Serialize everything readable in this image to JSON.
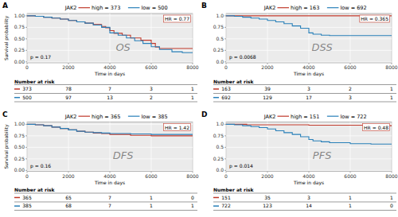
{
  "chart_data": [
    {
      "type": "line",
      "line_style": "step",
      "panel_label": "A",
      "title": "JAK2",
      "subtitle": "OS",
      "annotations": [
        "HR = 0.77",
        "p = 0.17"
      ],
      "xlabel": "Time in days",
      "ylabel": "Survival probability",
      "xlim": [
        0,
        8000
      ],
      "ylim": [
        -0.02,
        1.05
      ],
      "xticks": [
        0,
        2000,
        4000,
        6000,
        8000
      ],
      "yticks": [
        {
          "value": 0.0,
          "label": "0.00"
        },
        0.25,
        {
          "value": 0.5,
          "label": "0.50"
        },
        0.75,
        {
          "value": 1.0,
          "label": "1.00"
        }
      ],
      "grid": true,
      "risk_table_title": "Number at risk",
      "series": [
        {
          "name": "high = 373",
          "color": "#c0392b",
          "x": [
            0,
            400,
            800,
            1200,
            1600,
            2000,
            2400,
            2800,
            3200,
            3600,
            3800,
            4000,
            4200,
            4600,
            5000,
            5500,
            6000,
            6200,
            6400,
            7000,
            7500,
            8000
          ],
          "values": [
            1.0,
            0.99,
            0.97,
            0.95,
            0.93,
            0.9,
            0.87,
            0.84,
            0.81,
            0.77,
            0.74,
            0.68,
            0.62,
            0.58,
            0.52,
            0.47,
            0.4,
            0.32,
            0.29,
            0.29,
            0.29,
            0.29
          ],
          "at_risk": [
            373,
            78,
            7,
            3,
            1
          ]
        },
        {
          "name": "low = 500",
          "color": "#2980b9",
          "x": [
            0,
            400,
            800,
            1200,
            1600,
            2000,
            2400,
            2800,
            3200,
            3600,
            4000,
            4400,
            4800,
            5200,
            5600,
            6000,
            6400,
            7000,
            7500,
            8000
          ],
          "values": [
            1.0,
            0.99,
            0.97,
            0.95,
            0.93,
            0.9,
            0.87,
            0.84,
            0.8,
            0.75,
            0.63,
            0.58,
            0.52,
            0.46,
            0.4,
            0.33,
            0.27,
            0.22,
            0.2,
            0.2
          ],
          "at_risk": [
            500,
            97,
            13,
            2,
            1
          ]
        }
      ]
    },
    {
      "type": "line",
      "line_style": "step",
      "panel_label": "B",
      "title": "JAK2",
      "subtitle": "DSS",
      "annotations": [
        "HR = 0.365",
        "p = 0.0068"
      ],
      "xlabel": "Time in days",
      "xlim": [
        0,
        8000
      ],
      "ylim": [
        -0.02,
        1.05
      ],
      "xticks": [
        0,
        2000,
        4000,
        6000,
        8000
      ],
      "yticks": [
        {
          "value": 0.0,
          "label": "0.0"
        },
        0.25,
        0.5,
        0.75,
        {
          "value": 1.0,
          "label": "1.0"
        }
      ],
      "grid": true,
      "risk_table_title": "Number at risk",
      "series": [
        {
          "name": "high = 163",
          "color": "#c0392b",
          "x": [
            0,
            500,
            1000,
            2000,
            3000,
            4000,
            5000,
            6000,
            7000,
            8000
          ],
          "values": [
            1.0,
            1.0,
            1.0,
            1.0,
            1.0,
            1.0,
            1.0,
            1.0,
            1.0,
            1.0
          ],
          "at_risk": [
            163,
            39,
            3,
            2,
            1
          ]
        },
        {
          "name": "low = 692",
          "color": "#2980b9",
          "x": [
            0,
            400,
            800,
            1200,
            1600,
            2000,
            2400,
            2800,
            3200,
            3600,
            4000,
            4200,
            4600,
            5000,
            6000,
            7000,
            8000
          ],
          "values": [
            1.0,
            0.99,
            0.97,
            0.95,
            0.93,
            0.9,
            0.87,
            0.83,
            0.78,
            0.73,
            0.63,
            0.6,
            0.58,
            0.57,
            0.57,
            0.57,
            0.57
          ],
          "at_risk": [
            692,
            129,
            17,
            3,
            1
          ]
        }
      ]
    },
    {
      "type": "line",
      "line_style": "step",
      "panel_label": "C",
      "title": "JAK2",
      "subtitle": "DFS",
      "annotations": [
        "HR = 1.42",
        "p = 0.16"
      ],
      "xlabel": "Time in days",
      "ylabel": "Survival probability",
      "xlim": [
        0,
        8000
      ],
      "ylim": [
        -0.02,
        1.05
      ],
      "xticks": [
        0,
        2000,
        4000,
        6000,
        8000
      ],
      "yticks": [
        {
          "value": 0.0,
          "label": "0.00"
        },
        0.25,
        {
          "value": 0.5,
          "label": "0.50"
        },
        0.75,
        {
          "value": 1.0,
          "label": "1.00"
        }
      ],
      "grid": true,
      "risk_table_title": "Number at risk",
      "series": [
        {
          "name": "high = 365",
          "color": "#c0392b",
          "x": [
            0,
            400,
            800,
            1200,
            1600,
            2000,
            2400,
            2800,
            3200,
            3600,
            4000,
            5000,
            6000,
            7000,
            8000
          ],
          "values": [
            1.0,
            0.99,
            0.97,
            0.94,
            0.91,
            0.88,
            0.85,
            0.83,
            0.81,
            0.8,
            0.78,
            0.76,
            0.75,
            0.75,
            0.75
          ],
          "at_risk": [
            365,
            65,
            7,
            1,
            0
          ]
        },
        {
          "name": "low = 385",
          "color": "#2980b9",
          "x": [
            0,
            400,
            800,
            1200,
            1600,
            2000,
            2400,
            2800,
            3200,
            3600,
            4000,
            5000,
            6000,
            7000,
            8000
          ],
          "values": [
            1.0,
            0.99,
            0.97,
            0.94,
            0.91,
            0.88,
            0.85,
            0.83,
            0.82,
            0.81,
            0.8,
            0.79,
            0.78,
            0.78,
            0.78
          ],
          "at_risk": [
            385,
            68,
            7,
            1,
            1
          ]
        }
      ]
    },
    {
      "type": "line",
      "line_style": "step",
      "panel_label": "D",
      "title": "JAK2",
      "subtitle": "PFS",
      "annotations": [
        "HR = 0.48",
        "p = 0.014"
      ],
      "xlabel": "Time in days",
      "xlim": [
        0,
        8000
      ],
      "ylim": [
        -0.02,
        1.05
      ],
      "xticks": [
        0,
        2000,
        4000,
        6000,
        8000
      ],
      "yticks": [
        {
          "value": 0.0,
          "label": "0.0"
        },
        0.25,
        0.5,
        0.75,
        {
          "value": 1.0,
          "label": "1.0"
        }
      ],
      "grid": true,
      "risk_table_title": "Number at risk",
      "series": [
        {
          "name": "high = 151",
          "color": "#c0392b",
          "x": [
            0,
            500,
            1000,
            2000,
            3000,
            4000,
            5000,
            6000,
            7000,
            8000
          ],
          "values": [
            1.0,
            1.0,
            0.99,
            0.99,
            0.99,
            0.98,
            0.98,
            0.98,
            0.97,
            0.97
          ],
          "at_risk": [
            151,
            35,
            3,
            1,
            1
          ]
        },
        {
          "name": "low = 722",
          "color": "#2980b9",
          "x": [
            0,
            400,
            800,
            1200,
            1600,
            2000,
            2400,
            2800,
            3200,
            3600,
            4000,
            4200,
            4600,
            5000,
            6000,
            7000,
            8000
          ],
          "values": [
            1.0,
            0.99,
            0.97,
            0.95,
            0.93,
            0.9,
            0.86,
            0.82,
            0.78,
            0.73,
            0.67,
            0.64,
            0.62,
            0.6,
            0.58,
            0.57,
            0.57
          ],
          "at_risk": [
            722,
            123,
            14,
            1,
            0
          ]
        }
      ]
    }
  ]
}
